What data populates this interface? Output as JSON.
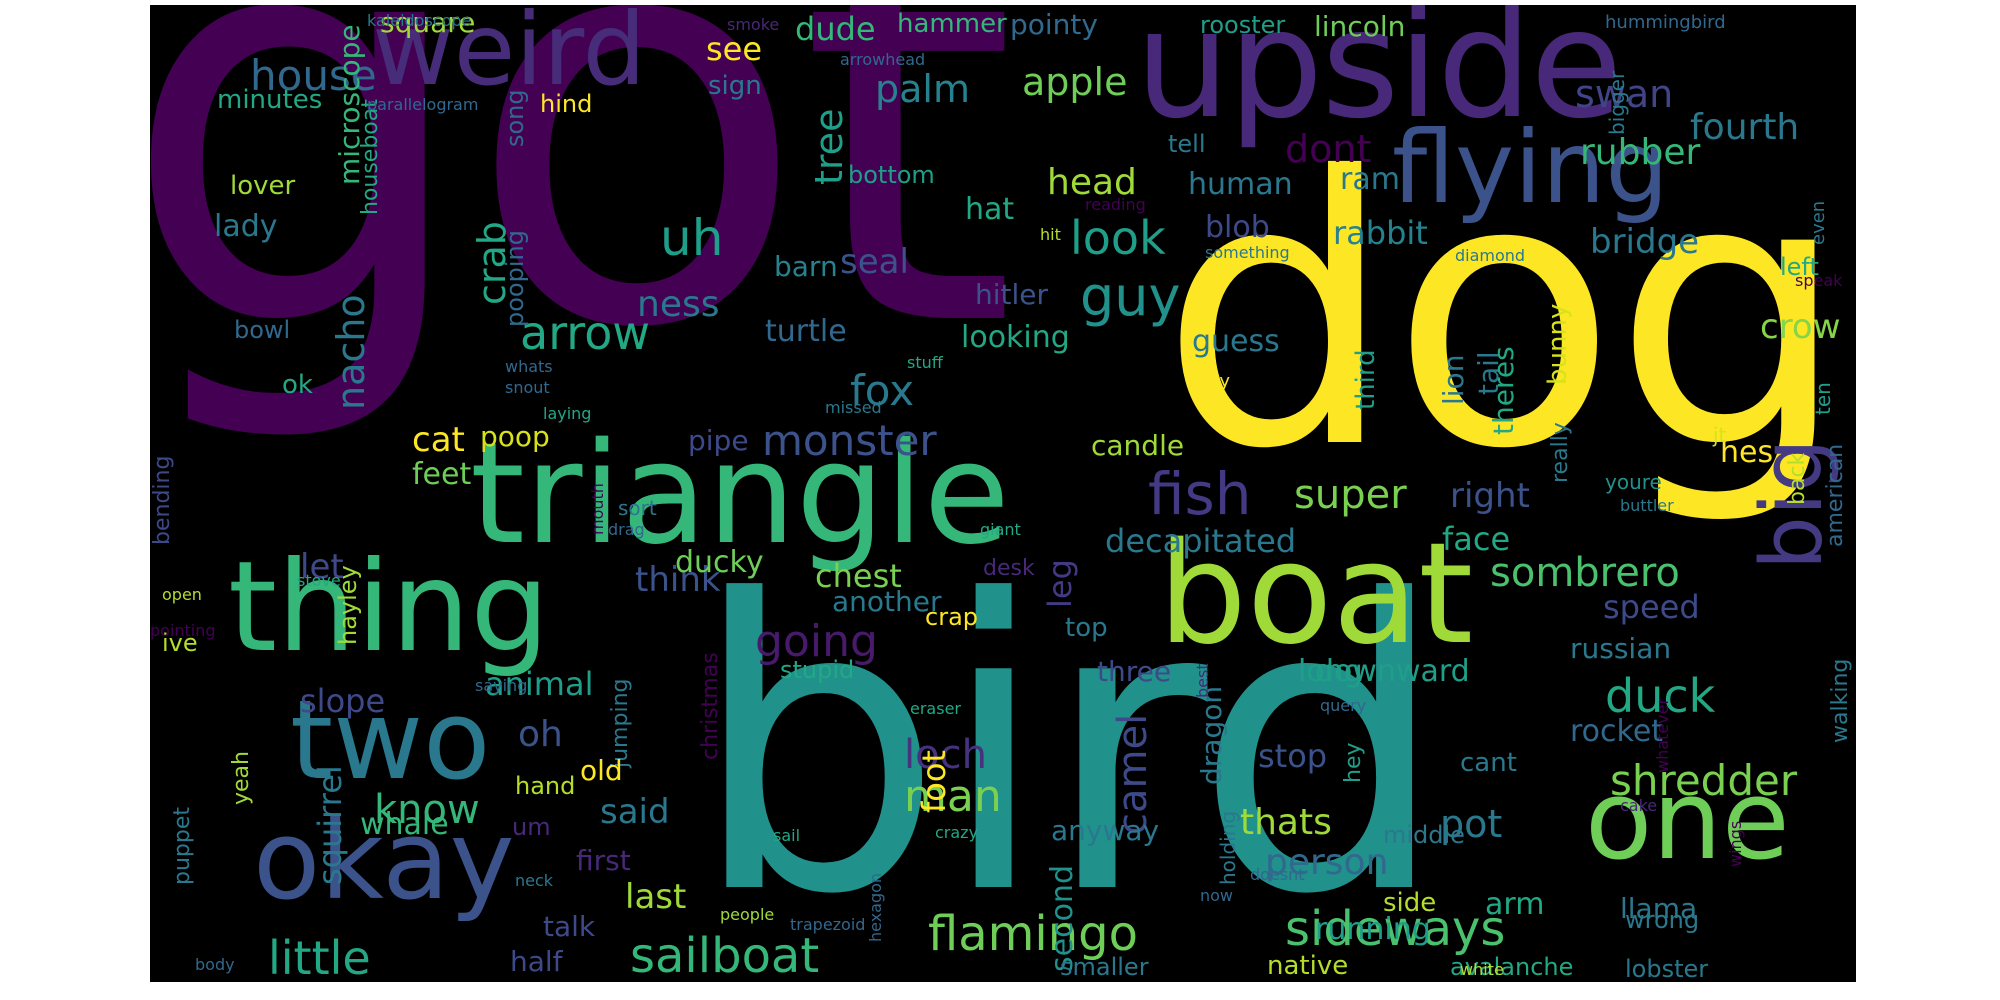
{
  "words": [
    {
      "text": "got",
      "color": "#440154"
    },
    {
      "text": "bird",
      "color": "#21918c"
    },
    {
      "text": "dog",
      "color": "#fde725"
    },
    {
      "text": "upside",
      "color": "#482878"
    },
    {
      "text": "triangle",
      "color": "#35b779"
    },
    {
      "text": "boat",
      "color": "#a0da39"
    },
    {
      "text": "thing",
      "color": "#35b779"
    },
    {
      "text": "weird",
      "color": "#472c7a"
    },
    {
      "text": "flying",
      "color": "#3b528b"
    },
    {
      "text": "two",
      "color": "#2a788e"
    },
    {
      "text": "okay",
      "color": "#3b528b"
    },
    {
      "text": "one",
      "color": "#6ece58"
    },
    {
      "text": "big",
      "color": "#443983"
    },
    {
      "text": "sideways",
      "color": "#4ac16d"
    },
    {
      "text": "flamingo",
      "color": "#6ece58"
    },
    {
      "text": "fish",
      "color": "#443983"
    },
    {
      "text": "sailboat",
      "color": "#35b779"
    },
    {
      "text": "little",
      "color": "#22a884"
    },
    {
      "text": "guy",
      "color": "#21918c"
    },
    {
      "text": "look",
      "color": "#1f9e89"
    },
    {
      "text": "arrow",
      "color": "#22a884"
    },
    {
      "text": "house",
      "color": "#31688e"
    },
    {
      "text": "uh",
      "color": "#1f9e89"
    },
    {
      "text": "duck",
      "color": "#22a884"
    },
    {
      "text": "going",
      "color": "#481a6c"
    },
    {
      "text": "shredder",
      "color": "#7ad151"
    },
    {
      "text": "sombrero",
      "color": "#4ac16d"
    },
    {
      "text": "monster",
      "color": "#3b528b"
    },
    {
      "text": "man",
      "color": "#7ad151"
    },
    {
      "text": "super",
      "color": "#7ad151"
    },
    {
      "text": "fox",
      "color": "#2a788e"
    },
    {
      "text": "know",
      "color": "#35b779"
    },
    {
      "text": "loch",
      "color": "#46327e"
    },
    {
      "text": "camel",
      "color": "#3e4989"
    },
    {
      "text": "nacho",
      "color": "#2a788e"
    },
    {
      "text": "crab",
      "color": "#22a884"
    },
    {
      "text": "tree",
      "color": "#1f9e89"
    },
    {
      "text": "rubber",
      "color": "#35b779"
    },
    {
      "text": "swan",
      "color": "#414487"
    },
    {
      "text": "palm",
      "color": "#26828e"
    },
    {
      "text": "apple",
      "color": "#6ece58"
    },
    {
      "text": "head",
      "color": "#a0da39"
    },
    {
      "text": "dont",
      "color": "#440154"
    },
    {
      "text": "fourth",
      "color": "#2a788e"
    },
    {
      "text": "bridge",
      "color": "#2a788e"
    },
    {
      "text": "crow",
      "color": "#86d549"
    },
    {
      "text": "ness",
      "color": "#2a788e"
    },
    {
      "text": "seal",
      "color": "#3b528b"
    },
    {
      "text": "think",
      "color": "#3b528b"
    },
    {
      "text": "chest",
      "color": "#7ad151"
    },
    {
      "text": "leg",
      "color": "#443983"
    },
    {
      "text": "squirrel",
      "color": "#2a788e"
    },
    {
      "text": "said",
      "color": "#2a788e"
    },
    {
      "text": "last",
      "color": "#a0da39"
    },
    {
      "text": "oh",
      "color": "#3b528b"
    },
    {
      "text": "decapitated",
      "color": "#2a788e"
    },
    {
      "text": "face",
      "color": "#22a884"
    },
    {
      "text": "right",
      "color": "#3b528b"
    },
    {
      "text": "speed",
      "color": "#3e4989"
    },
    {
      "text": "russian",
      "color": "#2a788e"
    },
    {
      "text": "downward",
      "color": "#1f9e89"
    },
    {
      "text": "stop",
      "color": "#3b528b"
    },
    {
      "text": "rocket",
      "color": "#31688e"
    },
    {
      "text": "person",
      "color": "#31688e"
    },
    {
      "text": "thats",
      "color": "#a0da39"
    },
    {
      "text": "pot",
      "color": "#2a788e"
    },
    {
      "text": "running",
      "color": "#1f9e89"
    },
    {
      "text": "arm",
      "color": "#22a884"
    },
    {
      "text": "llama",
      "color": "#2a788e"
    },
    {
      "text": "whale",
      "color": "#35b779"
    },
    {
      "text": "foot",
      "color": "#fde725"
    },
    {
      "text": "second",
      "color": "#21918c"
    },
    {
      "text": "dragon",
      "color": "#2a788e"
    },
    {
      "text": "let",
      "color": "#3e4989"
    },
    {
      "text": "slope",
      "color": "#3e4989"
    },
    {
      "text": "animal",
      "color": "#1f9e89"
    },
    {
      "text": "ducky",
      "color": "#6ece58"
    },
    {
      "text": "long",
      "color": "#1f9e89"
    },
    {
      "text": "three",
      "color": "#3e4989"
    },
    {
      "text": "cat",
      "color": "#fde725"
    },
    {
      "text": "feet",
      "color": "#6ece58"
    },
    {
      "text": "poop",
      "color": "#d8e219"
    },
    {
      "text": "pipe",
      "color": "#3e4989"
    },
    {
      "text": "hat",
      "color": "#22a884"
    },
    {
      "text": "looking",
      "color": "#22a884"
    },
    {
      "text": "guess",
      "color": "#2a788e"
    },
    {
      "text": "turtle",
      "color": "#31688e"
    },
    {
      "text": "barn",
      "color": "#26828e"
    },
    {
      "text": "hitler",
      "color": "#3b528b"
    },
    {
      "text": "lion",
      "color": "#2a788e"
    },
    {
      "text": "tail",
      "color": "#2a788e"
    },
    {
      "text": "theres",
      "color": "#22a884"
    },
    {
      "text": "third",
      "color": "#1f9e89"
    },
    {
      "text": "rabbit",
      "color": "#26828e"
    },
    {
      "text": "blob",
      "color": "#3e4989"
    },
    {
      "text": "human",
      "color": "#2a788e"
    },
    {
      "text": "ram",
      "color": "#2a788e"
    },
    {
      "text": "hes",
      "color": "#fde725"
    },
    {
      "text": "bunny",
      "color": "#d8e219"
    },
    {
      "text": "candle",
      "color": "#a0da39"
    },
    {
      "text": "anyway",
      "color": "#2a788e"
    },
    {
      "text": "another",
      "color": "#2a788e"
    },
    {
      "text": "top",
      "color": "#2a788e"
    },
    {
      "text": "hammer",
      "color": "#35b779"
    },
    {
      "text": "pointy",
      "color": "#31688e"
    },
    {
      "text": "rooster",
      "color": "#1f9e89"
    },
    {
      "text": "lincoln",
      "color": "#6ece58"
    },
    {
      "text": "dude",
      "color": "#35b779"
    },
    {
      "text": "square",
      "color": "#a0da39"
    },
    {
      "text": "see",
      "color": "#fde725"
    },
    {
      "text": "sign",
      "color": "#2a788e"
    },
    {
      "text": "minutes",
      "color": "#22a884"
    },
    {
      "text": "microscope",
      "color": "#35b779"
    },
    {
      "text": "houseboat",
      "color": "#22a884"
    },
    {
      "text": "lover",
      "color": "#a0da39"
    },
    {
      "text": "lady",
      "color": "#2a788e"
    },
    {
      "text": "pooping",
      "color": "#31688e"
    },
    {
      "text": "song",
      "color": "#31688e"
    },
    {
      "text": "hind",
      "color": "#fde725"
    },
    {
      "text": "bottom",
      "color": "#1f9e89"
    },
    {
      "text": "bowl",
      "color": "#31688e"
    },
    {
      "text": "ok",
      "color": "#22a884"
    },
    {
      "text": "bending",
      "color": "#3e4989"
    },
    {
      "text": "christmas",
      "color": "#440154"
    },
    {
      "text": "jumping",
      "color": "#2a788e"
    },
    {
      "text": "hayley",
      "color": "#a0da39"
    },
    {
      "text": "ive",
      "color": "#b5de2b"
    },
    {
      "text": "puppet",
      "color": "#2a788e"
    },
    {
      "text": "yeah",
      "color": "#a0da39"
    },
    {
      "text": "hand",
      "color": "#b5de2b"
    },
    {
      "text": "old",
      "color": "#fde725"
    },
    {
      "text": "um",
      "color": "#482878"
    },
    {
      "text": "first",
      "color": "#482878"
    },
    {
      "text": "talk",
      "color": "#3e4989"
    },
    {
      "text": "half",
      "color": "#3e4989"
    },
    {
      "text": "native",
      "color": "#b5de2b"
    },
    {
      "text": "smaller",
      "color": "#2a788e"
    },
    {
      "text": "avalanche",
      "color": "#22a884"
    },
    {
      "text": "lobster",
      "color": "#2a788e"
    },
    {
      "text": "wrong",
      "color": "#2a788e"
    },
    {
      "text": "side",
      "color": "#b5de2b"
    },
    {
      "text": "middle",
      "color": "#2a788e"
    },
    {
      "text": "holding",
      "color": "#2a788e"
    },
    {
      "text": "cant",
      "color": "#2a788e"
    },
    {
      "text": "hey",
      "color": "#1f9e89"
    },
    {
      "text": "crap",
      "color": "#fde725"
    },
    {
      "text": "stupid",
      "color": "#22a884"
    },
    {
      "text": "desk",
      "color": "#482878"
    },
    {
      "text": "american",
      "color": "#31688e"
    },
    {
      "text": "back",
      "color": "#b5de2b"
    },
    {
      "text": "youre",
      "color": "#21918c"
    },
    {
      "text": "jt",
      "color": "#d8e219"
    },
    {
      "text": "ten",
      "color": "#1f9e89"
    },
    {
      "text": "walking",
      "color": "#2a788e"
    },
    {
      "text": "really",
      "color": "#2a788e"
    },
    {
      "text": "left",
      "color": "#22a884"
    },
    {
      "text": "even",
      "color": "#2a788e"
    },
    {
      "text": "bigger",
      "color": "#2a788e"
    },
    {
      "text": "tell",
      "color": "#2a788e"
    },
    {
      "text": "kaleidoscope",
      "color": "#2a788e"
    },
    {
      "text": "parallelogram",
      "color": "#31688e"
    },
    {
      "text": "arrowhead",
      "color": "#31688e"
    },
    {
      "text": "hummingbird",
      "color": "#31688e"
    },
    {
      "text": "smoke",
      "color": "#482878"
    },
    {
      "text": "reading",
      "color": "#440154"
    },
    {
      "text": "hit",
      "color": "#b5de2b"
    },
    {
      "text": "something",
      "color": "#2a788e"
    },
    {
      "text": "diamond",
      "color": "#2a788e"
    },
    {
      "text": "speak",
      "color": "#440154"
    },
    {
      "text": "stuff",
      "color": "#22a884"
    },
    {
      "text": "missed",
      "color": "#2a788e"
    },
    {
      "text": "whats",
      "color": "#31688e"
    },
    {
      "text": "snout",
      "color": "#31688e"
    },
    {
      "text": "laying",
      "color": "#22a884"
    },
    {
      "text": "fly",
      "color": "#fde725"
    },
    {
      "text": "sort",
      "color": "#2a788e"
    },
    {
      "text": "drag",
      "color": "#31688e"
    },
    {
      "text": "mouth",
      "color": "#440154"
    },
    {
      "text": "giant",
      "color": "#22a884"
    },
    {
      "text": "buttler",
      "color": "#2a788e"
    },
    {
      "text": "stove",
      "color": "#22a884"
    },
    {
      "text": "open",
      "color": "#b5de2b"
    },
    {
      "text": "pointing",
      "color": "#440154"
    },
    {
      "text": "saying",
      "color": "#31688e"
    },
    {
      "text": "eraser",
      "color": "#22a884"
    },
    {
      "text": "best",
      "color": "#482878"
    },
    {
      "text": "query",
      "color": "#31688e"
    },
    {
      "text": "cake",
      "color": "#482878"
    },
    {
      "text": "whatever",
      "color": "#440154"
    },
    {
      "text": "wings",
      "color": "#440154"
    },
    {
      "text": "crazy",
      "color": "#22a884"
    },
    {
      "text": "sail",
      "color": "#22a884"
    },
    {
      "text": "neck",
      "color": "#2a788e"
    },
    {
      "text": "doesnt",
      "color": "#31688e"
    },
    {
      "text": "now",
      "color": "#31688e"
    },
    {
      "text": "people",
      "color": "#a0da39"
    },
    {
      "text": "trapezoid",
      "color": "#31688e"
    },
    {
      "text": "hexagon",
      "color": "#31688e"
    },
    {
      "text": "body",
      "color": "#31688e"
    },
    {
      "text": "white",
      "color": "#b5de2b"
    }
  ]
}
